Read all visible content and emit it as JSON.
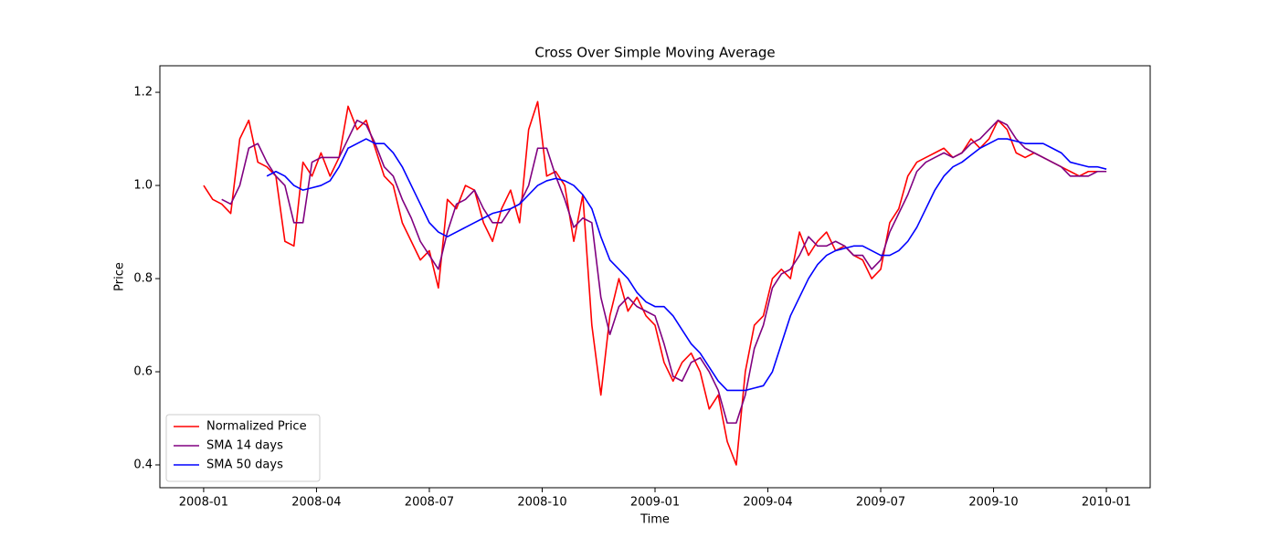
{
  "chart_data": {
    "type": "line",
    "title": "Cross Over Simple Moving Average",
    "xlabel": "Time",
    "ylabel": "Price",
    "legend": "lower left",
    "x": [
      2008,
      2008.02,
      2008.04,
      2008.06,
      2008.08,
      2008.1,
      2008.12,
      2008.14,
      2008.16,
      2008.18,
      2008.2,
      2008.22,
      2008.24,
      2008.26,
      2008.28,
      2008.3,
      2008.32,
      2008.34,
      2008.36,
      2008.38,
      2008.4,
      2008.42,
      2008.44,
      2008.46,
      2008.48,
      2008.5,
      2008.52,
      2008.54,
      2008.56,
      2008.58,
      2008.6,
      2008.62,
      2008.64,
      2008.66,
      2008.68,
      2008.7,
      2008.72,
      2008.74,
      2008.76,
      2008.78,
      2008.8,
      2008.82,
      2008.84,
      2008.86,
      2008.88,
      2008.9,
      2008.92,
      2008.94,
      2008.96,
      2008.98,
      2009,
      2009.02,
      2009.04,
      2009.06,
      2009.08,
      2009.1,
      2009.12,
      2009.14,
      2009.16,
      2009.18,
      2009.2,
      2009.22,
      2009.24,
      2009.26,
      2009.28,
      2009.3,
      2009.32,
      2009.34,
      2009.36,
      2009.38,
      2009.4,
      2009.42,
      2009.44,
      2009.46,
      2009.48,
      2009.5,
      2009.52,
      2009.54,
      2009.56,
      2009.58,
      2009.6,
      2009.62,
      2009.64,
      2009.66,
      2009.68,
      2009.7,
      2009.72,
      2009.74,
      2009.76,
      2009.78,
      2009.8,
      2009.82,
      2009.84,
      2009.86,
      2009.88,
      2009.9,
      2009.92,
      2009.94,
      2009.96,
      2009.98,
      2010
    ],
    "series": [
      {
        "name": "Normalized Price",
        "color": "#ff0000",
        "values": [
          1.0,
          0.97,
          0.96,
          0.94,
          1.1,
          1.14,
          1.05,
          1.04,
          1.02,
          0.88,
          0.87,
          1.05,
          1.02,
          1.07,
          1.02,
          1.06,
          1.17,
          1.12,
          1.14,
          1.08,
          1.02,
          1.0,
          0.92,
          0.88,
          0.84,
          0.86,
          0.78,
          0.97,
          0.95,
          1.0,
          0.99,
          0.92,
          0.88,
          0.95,
          0.99,
          0.92,
          1.12,
          1.18,
          1.02,
          1.03,
          1.0,
          0.88,
          0.98,
          0.7,
          0.55,
          0.72,
          0.8,
          0.73,
          0.76,
          0.72,
          0.7,
          0.62,
          0.58,
          0.62,
          0.64,
          0.6,
          0.52,
          0.55,
          0.45,
          0.4,
          0.6,
          0.7,
          0.72,
          0.8,
          0.82,
          0.8,
          0.9,
          0.85,
          0.88,
          0.9,
          0.86,
          0.87,
          0.85,
          0.84,
          0.8,
          0.82,
          0.92,
          0.95,
          1.02,
          1.05,
          1.06,
          1.07,
          1.08,
          1.06,
          1.07,
          1.1,
          1.08,
          1.1,
          1.14,
          1.12,
          1.07,
          1.06,
          1.07,
          1.06,
          1.05,
          1.04,
          1.03,
          1.02,
          1.03,
          1.03,
          1.03
        ]
      },
      {
        "name": "SMA 14 days",
        "color": "#800080",
        "values": [
          null,
          null,
          0.97,
          0.96,
          1.0,
          1.08,
          1.09,
          1.05,
          1.02,
          1.0,
          0.92,
          0.92,
          1.05,
          1.06,
          1.06,
          1.06,
          1.1,
          1.14,
          1.13,
          1.09,
          1.04,
          1.02,
          0.97,
          0.93,
          0.88,
          0.85,
          0.82,
          0.9,
          0.96,
          0.97,
          0.99,
          0.95,
          0.92,
          0.92,
          0.95,
          0.96,
          1.0,
          1.08,
          1.08,
          1.02,
          0.97,
          0.91,
          0.93,
          0.92,
          0.76,
          0.68,
          0.74,
          0.76,
          0.74,
          0.73,
          0.72,
          0.66,
          0.59,
          0.58,
          0.62,
          0.63,
          0.6,
          0.56,
          0.49,
          0.49,
          0.55,
          0.65,
          0.7,
          0.78,
          0.81,
          0.82,
          0.85,
          0.89,
          0.87,
          0.87,
          0.88,
          0.87,
          0.85,
          0.85,
          0.82,
          0.84,
          0.9,
          0.94,
          0.98,
          1.03,
          1.05,
          1.06,
          1.07,
          1.06,
          1.07,
          1.09,
          1.1,
          1.12,
          1.14,
          1.13,
          1.1,
          1.08,
          1.07,
          1.06,
          1.05,
          1.04,
          1.02,
          1.02,
          1.02,
          1.03,
          1.03
        ]
      },
      {
        "name": "SMA 50 days",
        "color": "#0000ff",
        "values": [
          null,
          null,
          null,
          null,
          null,
          null,
          null,
          1.02,
          1.03,
          1.02,
          1.0,
          0.99,
          0.995,
          1.0,
          1.01,
          1.04,
          1.08,
          1.09,
          1.1,
          1.09,
          1.09,
          1.07,
          1.04,
          1.0,
          0.96,
          0.92,
          0.9,
          0.89,
          0.9,
          0.91,
          0.92,
          0.93,
          0.94,
          0.945,
          0.95,
          0.96,
          0.98,
          1.0,
          1.01,
          1.015,
          1.01,
          1.0,
          0.98,
          0.95,
          0.89,
          0.84,
          0.82,
          0.8,
          0.77,
          0.75,
          0.74,
          0.74,
          0.72,
          0.69,
          0.66,
          0.64,
          0.61,
          0.58,
          0.56,
          0.56,
          0.56,
          0.565,
          0.57,
          0.6,
          0.66,
          0.72,
          0.76,
          0.8,
          0.83,
          0.85,
          0.86,
          0.865,
          0.87,
          0.87,
          0.86,
          0.85,
          0.85,
          0.86,
          0.88,
          0.91,
          0.95,
          0.99,
          1.02,
          1.04,
          1.05,
          1.065,
          1.08,
          1.09,
          1.1,
          1.1,
          1.095,
          1.09,
          1.09,
          1.09,
          1.08,
          1.07,
          1.05,
          1.045,
          1.04,
          1.04,
          1.035
        ]
      }
    ],
    "xlim": [
      2007.903,
      2010.097
    ],
    "ylim": [
      0.351,
      1.257
    ],
    "xticks": [
      {
        "value": 2008,
        "label": "2008-01"
      },
      {
        "value": 2008.25,
        "label": "2008-04"
      },
      {
        "value": 2008.5,
        "label": "2008-07"
      },
      {
        "value": 2008.75,
        "label": "2008-10"
      },
      {
        "value": 2009,
        "label": "2009-01"
      },
      {
        "value": 2009.25,
        "label": "2009-04"
      },
      {
        "value": 2009.5,
        "label": "2009-07"
      },
      {
        "value": 2009.75,
        "label": "2009-10"
      },
      {
        "value": 2010,
        "label": "2010-01"
      }
    ],
    "yticks": [
      0.4,
      0.6,
      0.8,
      {
        "value": 1,
        "label": "1.0"
      },
      1.2
    ],
    "grid": false
  }
}
